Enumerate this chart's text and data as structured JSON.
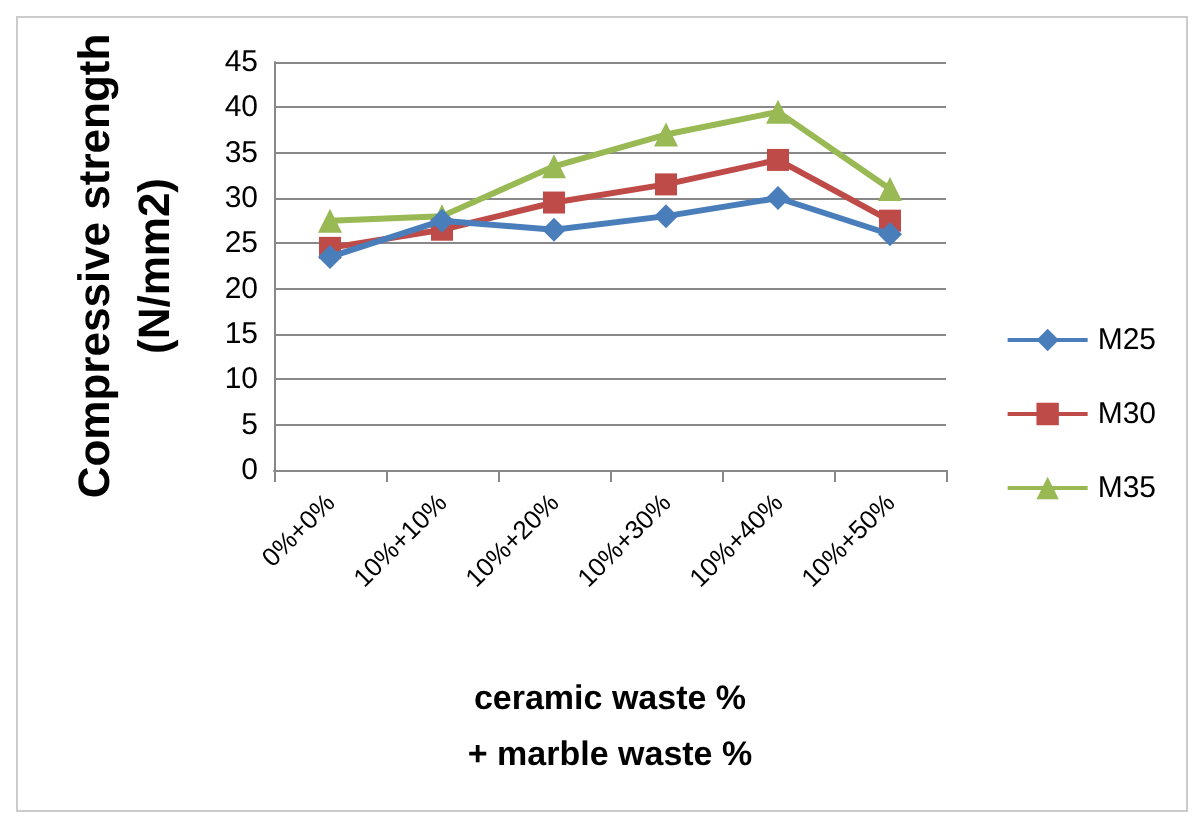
{
  "chart_data": {
    "type": "line",
    "xlabel": "ceramic waste %\n+ marble waste %",
    "ylabel": "Compressive strength\n(N/mm2)",
    "categories": [
      "0%+0%",
      "10%+10%",
      "10%+20%",
      "10%+30%",
      "10%+40%",
      "10%+50%"
    ],
    "series": [
      {
        "name": "M25",
        "color": "#4a7ebb",
        "marker": "diamond",
        "values": [
          23.5,
          27.5,
          26.5,
          28,
          30,
          26
        ]
      },
      {
        "name": "M30",
        "color": "#be4b48",
        "marker": "square",
        "values": [
          24.5,
          26.5,
          29.5,
          31.5,
          34.2,
          27.5
        ]
      },
      {
        "name": "M35",
        "color": "#98b954",
        "marker": "triangle",
        "values": [
          27.5,
          28,
          33.5,
          37,
          39.5,
          31
        ]
      }
    ],
    "ylim": [
      0,
      45
    ],
    "yticks": [
      0,
      5,
      10,
      15,
      20,
      25,
      30,
      35,
      40,
      45
    ],
    "grid": "y",
    "legend": "right"
  }
}
